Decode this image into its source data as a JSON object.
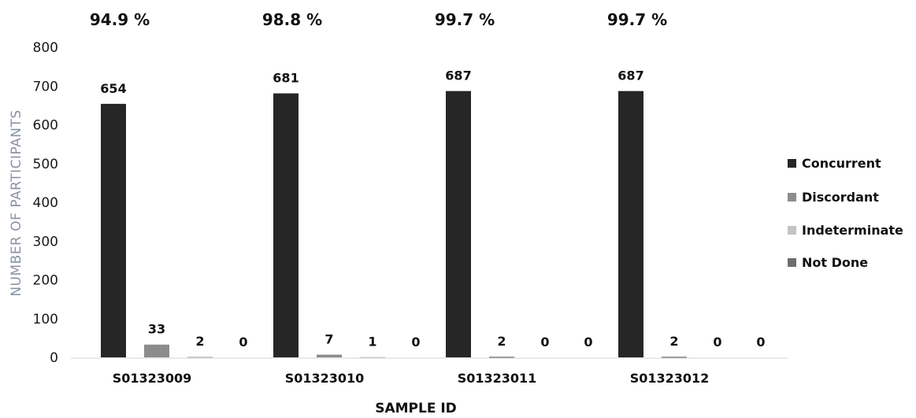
{
  "chart_data": {
    "type": "bar",
    "title": "",
    "xlabel": "SAMPLE ID",
    "ylabel": "NUMBER OF PARTICIPANTS",
    "ylim": [
      0,
      800
    ],
    "yticks": [
      "0",
      "100",
      "200",
      "300",
      "400",
      "500",
      "600",
      "700",
      "800"
    ],
    "categories": [
      "S01323009",
      "S01323010",
      "S01323011",
      "S01323012"
    ],
    "percent_labels": [
      "94.9 %",
      "98.8 %",
      "99.7 %",
      "99.7 %"
    ],
    "series": [
      {
        "name": "Concurrent",
        "values": [
          654,
          681,
          687,
          687
        ],
        "color": "#262626"
      },
      {
        "name": "Discordant",
        "values": [
          33,
          7,
          2,
          2
        ],
        "color": "#8c8c8c"
      },
      {
        "name": "Indeterminate",
        "values": [
          2,
          1,
          0,
          0
        ],
        "color": "#c4c4c4"
      },
      {
        "name": "Not Done",
        "values": [
          0,
          0,
          0,
          0
        ],
        "color": "#6e6e6e"
      }
    ],
    "legend_position": "right",
    "grid": false
  }
}
